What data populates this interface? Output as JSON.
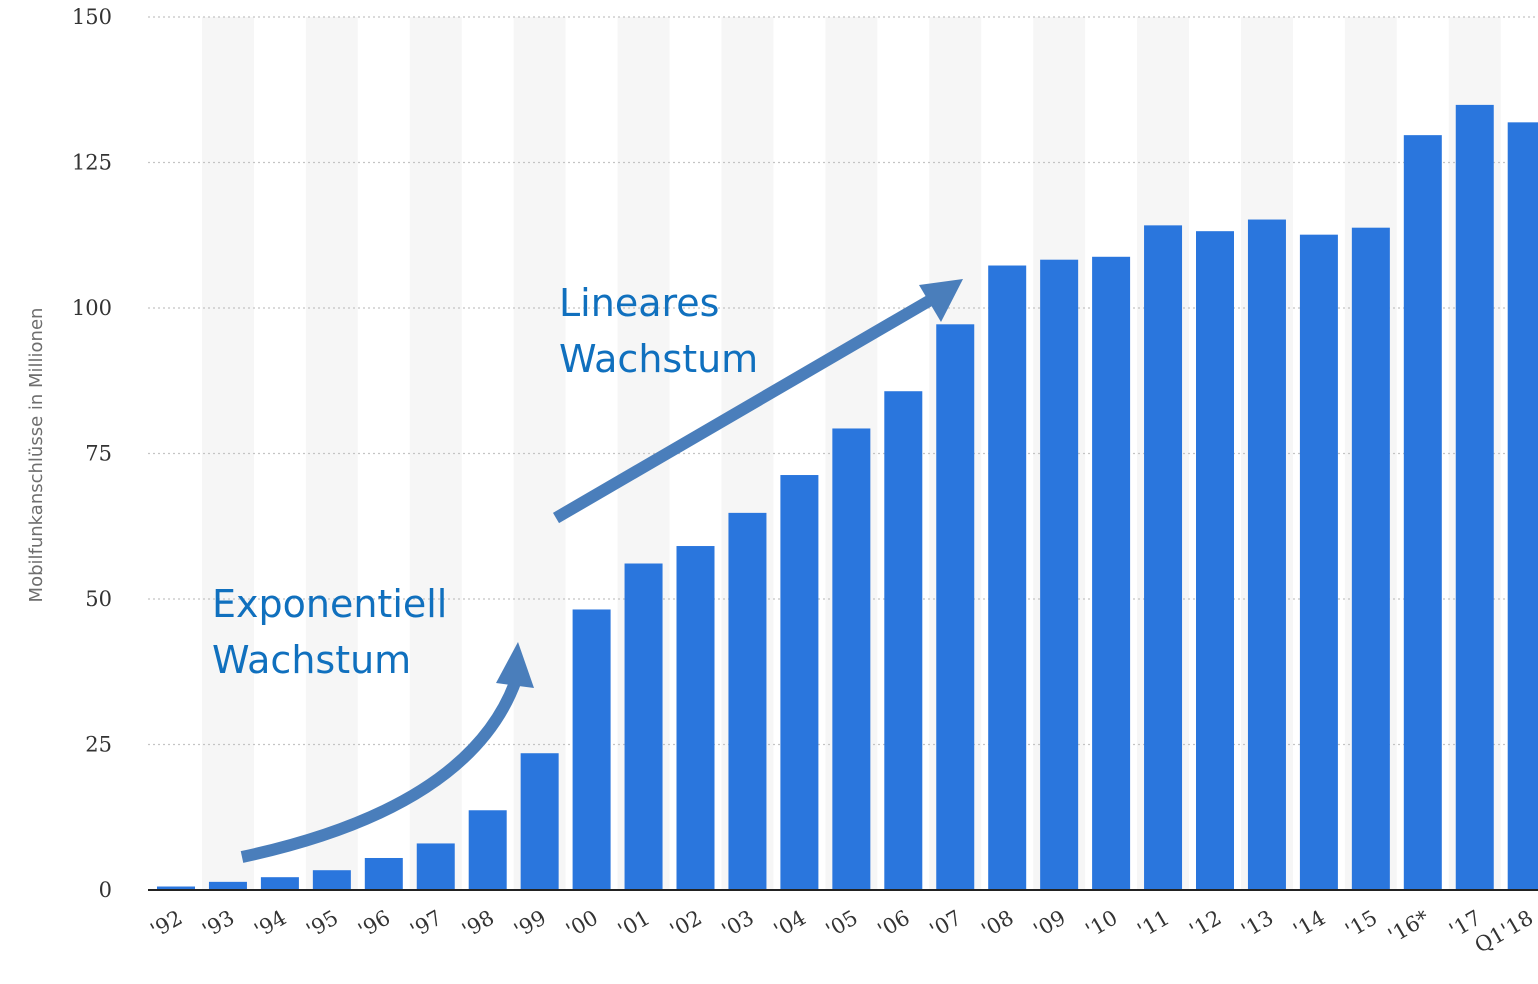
{
  "chart_data": {
    "type": "bar",
    "ylabel": "Mobilfunkanschlüsse in Millionen",
    "xlabel": "",
    "ylim": [
      0,
      150
    ],
    "yticks": [
      0,
      25,
      50,
      75,
      100,
      125,
      150
    ],
    "grid": "horizontal dotted",
    "categories": [
      "'92",
      "'93",
      "'94",
      "'95",
      "'96",
      "'97",
      "'98",
      "'99",
      "'00",
      "'01",
      "'02",
      "'03",
      "'04",
      "'05",
      "'06",
      "'07",
      "'08",
      "'09",
      "'10",
      "'11",
      "'12",
      "'13",
      "'14",
      "'15",
      "'16*",
      "'17",
      "Q1'18"
    ],
    "values": [
      0.6,
      1.4,
      2.2,
      3.4,
      5.5,
      8.0,
      13.7,
      23.5,
      48.2,
      56.1,
      59.1,
      64.8,
      71.3,
      79.3,
      85.7,
      97.2,
      107.3,
      108.3,
      108.8,
      114.2,
      113.2,
      115.2,
      112.6,
      113.8,
      129.7,
      134.9,
      131.9
    ],
    "bar_color": "#2a76dd",
    "stripe_color": "#f6f6f6",
    "annotations": [
      {
        "lines": [
          "Exponentiell",
          "Wachstum"
        ],
        "color": "#1070be"
      },
      {
        "lines": [
          "Lineares",
          "Wachstum"
        ],
        "color": "#1070be"
      }
    ],
    "arrow_color": "#4a7ebb"
  }
}
